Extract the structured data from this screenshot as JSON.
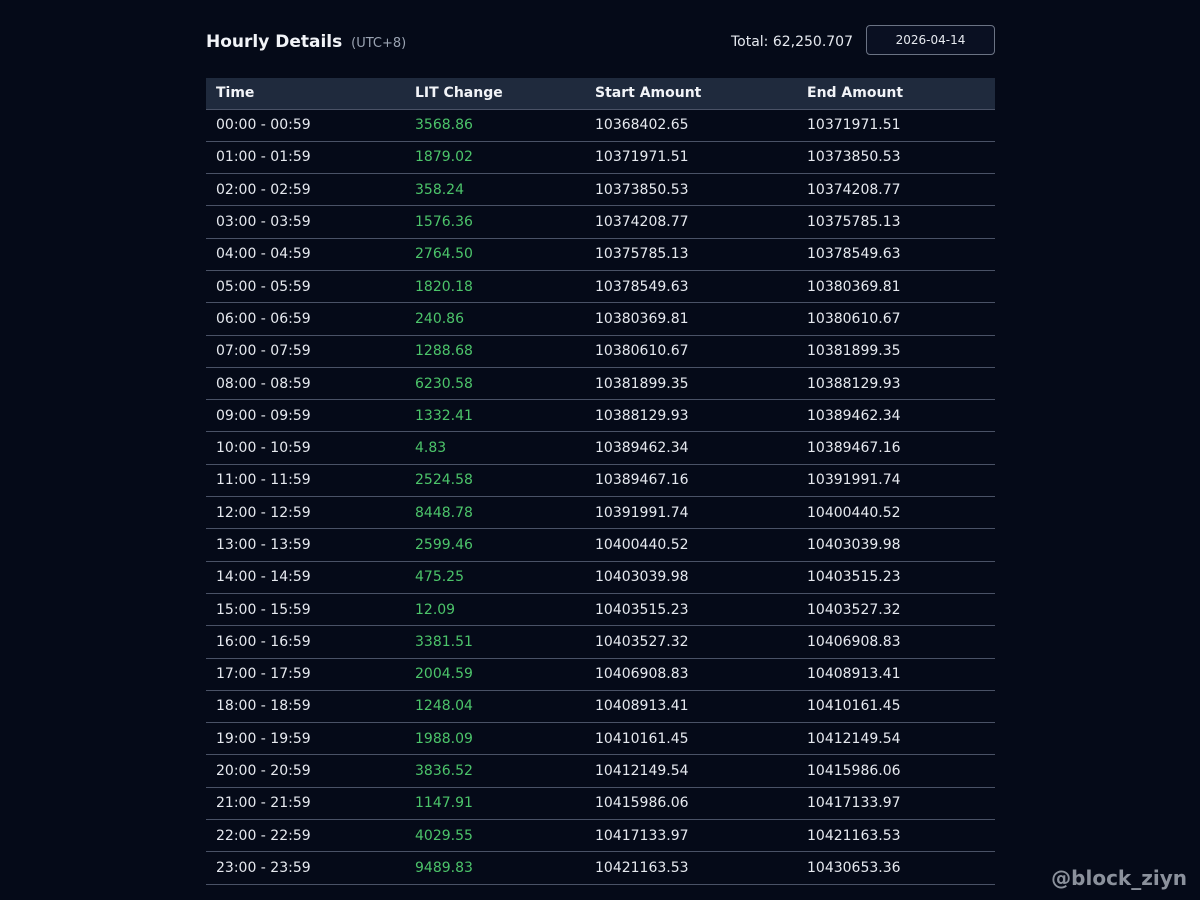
{
  "header": {
    "title": "Hourly Details",
    "timezone": "(UTC+8)",
    "total_label": "Total: 62,250.707",
    "date": "2026-04-14"
  },
  "table": {
    "columns": [
      "Time",
      "LIT Change",
      "Start Amount",
      "End Amount"
    ],
    "rows": [
      [
        "00:00 - 00:59",
        "3568.86",
        "10368402.65",
        "10371971.51"
      ],
      [
        "01:00 - 01:59",
        "1879.02",
        "10371971.51",
        "10373850.53"
      ],
      [
        "02:00 - 02:59",
        "358.24",
        "10373850.53",
        "10374208.77"
      ],
      [
        "03:00 - 03:59",
        "1576.36",
        "10374208.77",
        "10375785.13"
      ],
      [
        "04:00 - 04:59",
        "2764.50",
        "10375785.13",
        "10378549.63"
      ],
      [
        "05:00 - 05:59",
        "1820.18",
        "10378549.63",
        "10380369.81"
      ],
      [
        "06:00 - 06:59",
        "240.86",
        "10380369.81",
        "10380610.67"
      ],
      [
        "07:00 - 07:59",
        "1288.68",
        "10380610.67",
        "10381899.35"
      ],
      [
        "08:00 - 08:59",
        "6230.58",
        "10381899.35",
        "10388129.93"
      ],
      [
        "09:00 - 09:59",
        "1332.41",
        "10388129.93",
        "10389462.34"
      ],
      [
        "10:00 - 10:59",
        "4.83",
        "10389462.34",
        "10389467.16"
      ],
      [
        "11:00 - 11:59",
        "2524.58",
        "10389467.16",
        "10391991.74"
      ],
      [
        "12:00 - 12:59",
        "8448.78",
        "10391991.74",
        "10400440.52"
      ],
      [
        "13:00 - 13:59",
        "2599.46",
        "10400440.52",
        "10403039.98"
      ],
      [
        "14:00 - 14:59",
        "475.25",
        "10403039.98",
        "10403515.23"
      ],
      [
        "15:00 - 15:59",
        "12.09",
        "10403515.23",
        "10403527.32"
      ],
      [
        "16:00 - 16:59",
        "3381.51",
        "10403527.32",
        "10406908.83"
      ],
      [
        "17:00 - 17:59",
        "2004.59",
        "10406908.83",
        "10408913.41"
      ],
      [
        "18:00 - 18:59",
        "1248.04",
        "10408913.41",
        "10410161.45"
      ],
      [
        "19:00 - 19:59",
        "1988.09",
        "10410161.45",
        "10412149.54"
      ],
      [
        "20:00 - 20:59",
        "3836.52",
        "10412149.54",
        "10415986.06"
      ],
      [
        "21:00 - 21:59",
        "1147.91",
        "10415986.06",
        "10417133.97"
      ],
      [
        "22:00 - 22:59",
        "4029.55",
        "10417133.97",
        "10421163.53"
      ],
      [
        "23:00 - 23:59",
        "9489.83",
        "10421163.53",
        "10430653.36"
      ]
    ]
  },
  "colors": {
    "background": "#050a18",
    "header_row": "#1f2a3d",
    "positive_change": "#4cc46a"
  },
  "watermark": "@block_ziyn"
}
